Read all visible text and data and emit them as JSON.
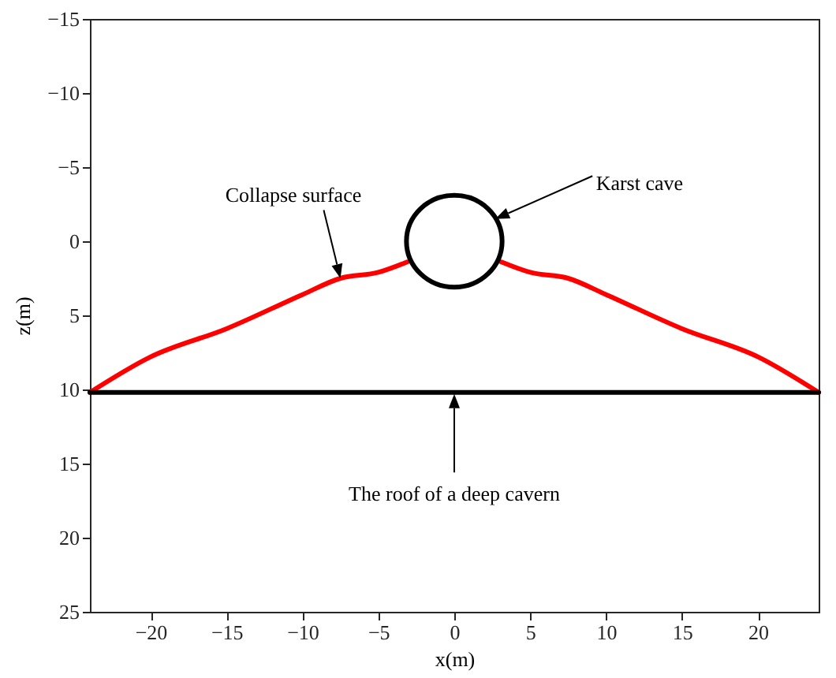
{
  "chart_data": {
    "type": "line",
    "xlabel": "x(m)",
    "ylabel": "z(m)",
    "xlim": [
      -24,
      24
    ],
    "xticks": [
      -20,
      -15,
      -10,
      -5,
      0,
      5,
      10,
      15,
      20
    ],
    "ylim": [
      25,
      -15
    ],
    "yticks": [
      -15,
      -10,
      -5,
      0,
      5,
      10,
      15,
      20,
      25
    ],
    "grid": false,
    "marker": "none",
    "line_style": "solid",
    "series": [
      {
        "color": "#ff0000",
        "x": [
          -24,
          -20,
          -15,
          -10,
          -7.5,
          -5,
          -3.1,
          0,
          3.1,
          5,
          7.5,
          10,
          15,
          20,
          24
        ],
        "values": [
          10.2,
          7.8,
          5.9,
          3.6,
          2.5,
          2.1,
          1.4,
          null,
          1.4,
          2.1,
          2.5,
          3.6,
          5.9,
          7.8,
          10.2
        ]
      },
      {
        "color": "#000000",
        "x": [
          -24,
          24
        ],
        "values": [
          10.2,
          10.2
        ]
      }
    ],
    "annotations": [
      "Collapse surface",
      "Karst cave",
      {
        "text": "The roof of a deep cavern",
        "x": 0,
        "y": 10.3
      }
    ]
  }
}
